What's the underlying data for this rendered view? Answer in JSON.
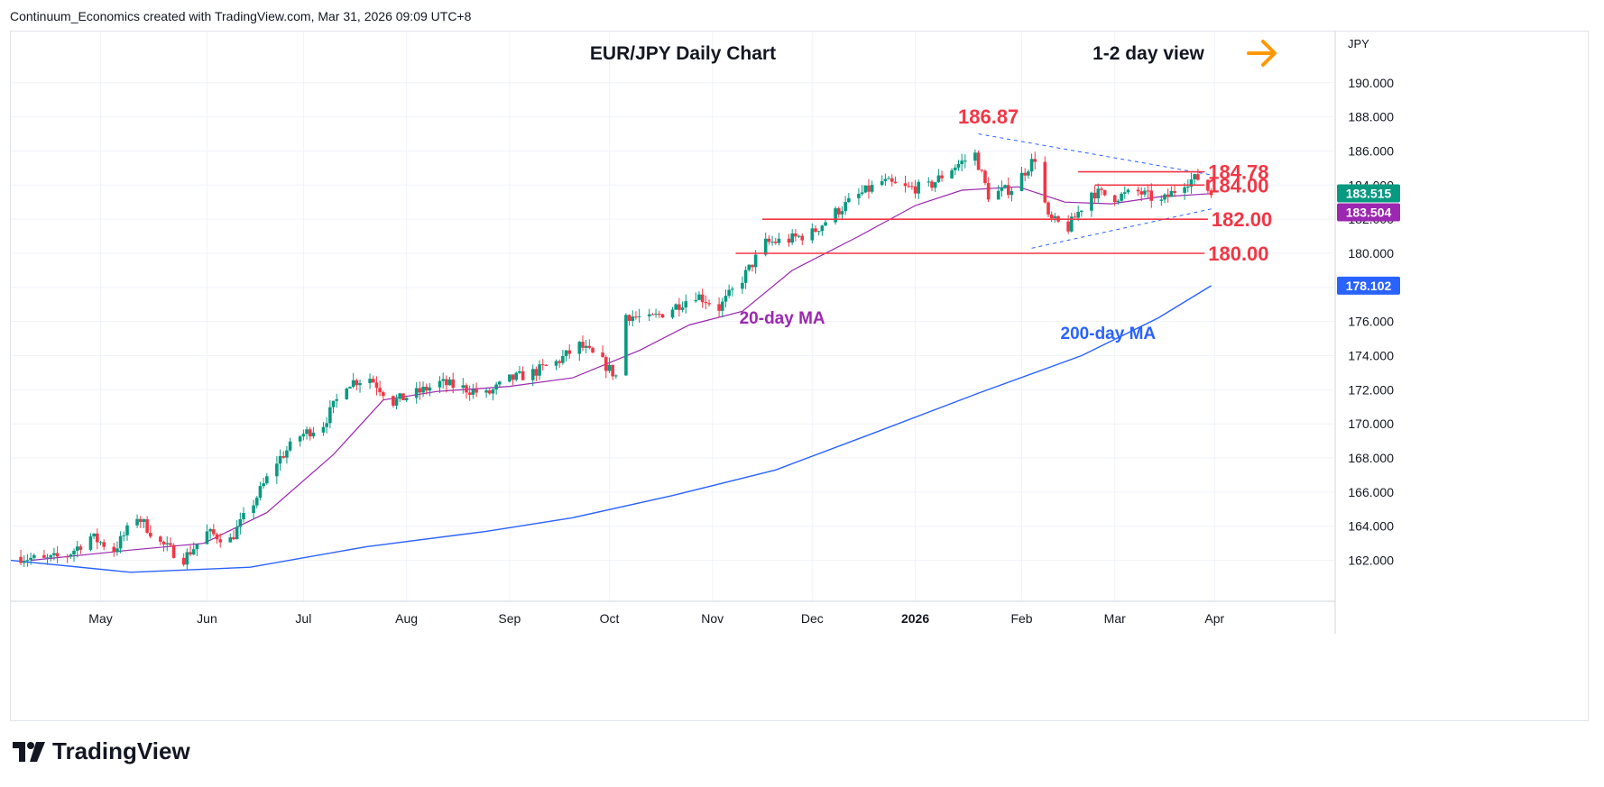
{
  "credit": "Continuum_Economics created with TradingView.com, Mar 31, 2026 09:09 UTC+8",
  "brand": "TradingView",
  "colors": {
    "up": "#089981",
    "down": "#f23645",
    "ma20": "#9c27b0",
    "ma200": "#2962ff",
    "level": "#f23645",
    "arrow": "#ff9800",
    "grid": "#f0f3fa",
    "price_badge": "#089981",
    "ma_badge": "#9c27b0",
    "ma200_badge": "#2962ff"
  },
  "chart_data": {
    "type": "candlestick",
    "title": "EUR/JPY Daily Chart",
    "view_label": "1-2 day view",
    "view_icon": "arrow-right-icon",
    "currency": "JPY",
    "ylim": [
      159.6,
      193.0
    ],
    "y_ticks": [
      "190.000",
      "188.000",
      "186.000",
      "184.000",
      "182.000",
      "180.000",
      "178.000",
      "176.000",
      "174.000",
      "172.000",
      "170.000",
      "168.000",
      "166.000",
      "164.000",
      "162.000"
    ],
    "x_ticks": [
      "May",
      "Jun",
      "Jul",
      "Aug",
      "Sep",
      "Oct",
      "Nov",
      "Dec",
      "2026",
      "Feb",
      "Mar",
      "Apr"
    ],
    "x_tick_dates": [
      "2025-05-01",
      "2025-06-02",
      "2025-07-01",
      "2025-08-01",
      "2025-09-01",
      "2025-10-01",
      "2025-11-01",
      "2025-12-01",
      "2026-01-01",
      "2026-02-02",
      "2026-03-02",
      "2026-04-01"
    ],
    "xlim_dates": [
      "2025-04-04",
      "2026-05-07"
    ],
    "price_path": [
      [
        "2025-04-07",
        162.2
      ],
      [
        "2025-04-14",
        162.0
      ],
      [
        "2025-04-21",
        162.3
      ],
      [
        "2025-04-28",
        163.4
      ],
      [
        "2025-05-05",
        162.6
      ],
      [
        "2025-05-12",
        164.6
      ],
      [
        "2025-05-19",
        163.0
      ],
      [
        "2025-05-26",
        162.1
      ],
      [
        "2025-06-02",
        163.6
      ],
      [
        "2025-06-09",
        163.2
      ],
      [
        "2025-06-16",
        165.4
      ],
      [
        "2025-06-23",
        167.8
      ],
      [
        "2025-06-30",
        169.3
      ],
      [
        "2025-07-07",
        170.0
      ],
      [
        "2025-07-14",
        172.4
      ],
      [
        "2025-07-21",
        172.7
      ],
      [
        "2025-07-28",
        171.3
      ],
      [
        "2025-08-04",
        171.8
      ],
      [
        "2025-08-11",
        172.4
      ],
      [
        "2025-08-18",
        172.1
      ],
      [
        "2025-08-25",
        171.7
      ],
      [
        "2025-09-01",
        172.6
      ],
      [
        "2025-09-08",
        173.0
      ],
      [
        "2025-09-15",
        173.6
      ],
      [
        "2025-09-22",
        174.6
      ],
      [
        "2025-09-29",
        173.6
      ],
      [
        "2025-10-03",
        172.8
      ],
      [
        "2025-10-06",
        176.4
      ],
      [
        "2025-10-13",
        176.1
      ],
      [
        "2025-10-20",
        176.8
      ],
      [
        "2025-10-27",
        177.6
      ],
      [
        "2025-11-03",
        176.8
      ],
      [
        "2025-11-10",
        178.5
      ],
      [
        "2025-11-17",
        180.6
      ],
      [
        "2025-11-24",
        180.8
      ],
      [
        "2025-12-01",
        181.2
      ],
      [
        "2025-12-08",
        182.4
      ],
      [
        "2025-12-15",
        183.4
      ],
      [
        "2025-12-22",
        184.2
      ],
      [
        "2025-12-29",
        183.8
      ],
      [
        "2026-01-05",
        183.9
      ],
      [
        "2026-01-12",
        185.0
      ],
      [
        "2026-01-19",
        185.8
      ],
      [
        "2026-01-23",
        183.4
      ],
      [
        "2026-01-30",
        183.8
      ],
      [
        "2026-02-06",
        185.6
      ],
      [
        "2026-02-10",
        182.0
      ],
      [
        "2026-02-16",
        181.5
      ],
      [
        "2026-02-23",
        183.6
      ],
      [
        "2026-03-02",
        183.3
      ],
      [
        "2026-03-09",
        183.6
      ],
      [
        "2026-03-16",
        183.0
      ],
      [
        "2026-03-23",
        184.2
      ],
      [
        "2026-03-27",
        184.4
      ],
      [
        "2026-03-31",
        183.5
      ]
    ],
    "series": [
      {
        "name": "20-day MA",
        "points": [
          [
            "2025-04-10",
            162.0
          ],
          [
            "2025-05-10",
            162.6
          ],
          [
            "2025-06-01",
            163.0
          ],
          [
            "2025-06-20",
            164.8
          ],
          [
            "2025-07-10",
            168.2
          ],
          [
            "2025-07-25",
            171.4
          ],
          [
            "2025-08-10",
            171.9
          ],
          [
            "2025-09-01",
            172.2
          ],
          [
            "2025-09-20",
            172.7
          ],
          [
            "2025-10-10",
            174.3
          ],
          [
            "2025-10-25",
            175.8
          ],
          [
            "2025-11-10",
            176.6
          ],
          [
            "2025-11-25",
            179.0
          ],
          [
            "2025-12-15",
            181.0
          ],
          [
            "2026-01-01",
            182.8
          ],
          [
            "2026-01-15",
            183.7
          ],
          [
            "2026-02-01",
            183.9
          ],
          [
            "2026-02-15",
            183.0
          ],
          [
            "2026-03-01",
            182.9
          ],
          [
            "2026-03-15",
            183.3
          ],
          [
            "2026-03-31",
            183.5
          ]
        ]
      },
      {
        "name": "200-day MA",
        "points": [
          [
            "2025-04-04",
            162.0
          ],
          [
            "2025-05-10",
            161.3
          ],
          [
            "2025-06-15",
            161.6
          ],
          [
            "2025-07-20",
            162.8
          ],
          [
            "2025-08-25",
            163.7
          ],
          [
            "2025-09-20",
            164.5
          ],
          [
            "2025-10-20",
            165.8
          ],
          [
            "2025-11-20",
            167.3
          ],
          [
            "2025-12-20",
            169.5
          ],
          [
            "2026-01-20",
            171.8
          ],
          [
            "2026-02-20",
            174.0
          ],
          [
            "2026-03-15",
            176.2
          ],
          [
            "2026-03-31",
            178.1
          ]
        ]
      }
    ],
    "series_labels": [
      {
        "text": "20-day MA",
        "date": "2025-11-22",
        "value": 176.3
      },
      {
        "text": "200-day MA",
        "date": "2026-02-28",
        "value": 175.4
      }
    ],
    "levels": [
      {
        "value": 184.78,
        "label": "184.78",
        "from": "2026-02-19",
        "to": "2026-03-29"
      },
      {
        "value": 184.0,
        "label": "184.00",
        "from": "2026-02-24",
        "to": "2026-03-29"
      },
      {
        "value": 182.0,
        "label": "182.00",
        "from": "2025-11-16",
        "to": "2026-03-30"
      },
      {
        "value": 180.0,
        "label": "180.00",
        "from": "2025-11-08",
        "to": "2026-03-29"
      }
    ],
    "peak": {
      "value": 186.87,
      "label": "186.87",
      "date": "2026-01-23"
    },
    "triangle": [
      {
        "from": [
          "2026-01-20",
          187.0
        ],
        "to": [
          "2026-03-31",
          184.6
        ]
      },
      {
        "from": [
          "2026-02-05",
          180.3
        ],
        "to": [
          "2026-03-31",
          182.6
        ]
      }
    ],
    "badges": [
      {
        "label": "183.515",
        "value": 183.515,
        "color_key": "price_badge"
      },
      {
        "label": "183.504",
        "value": 183.504,
        "color_key": "ma_badge"
      },
      {
        "label": "178.102",
        "value": 178.102,
        "color_key": "ma200_badge"
      }
    ]
  }
}
